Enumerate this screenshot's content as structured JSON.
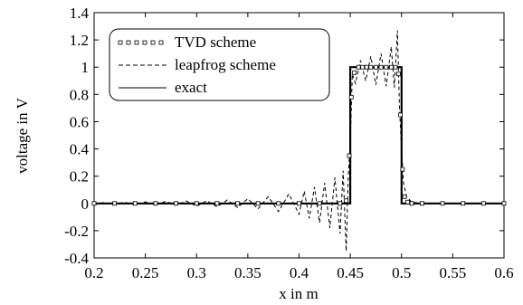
{
  "chart_data": {
    "type": "line",
    "xlabel": "x in m",
    "ylabel": "voltage in V",
    "xlim": [
      0.2,
      0.6
    ],
    "ylim": [
      -0.4,
      1.4
    ],
    "x_ticks": [
      "0.2",
      "0.25",
      "0.3",
      "0.35",
      "0.4",
      "0.45",
      "0.5",
      "0.55",
      "0.6"
    ],
    "y_ticks": [
      "-0.4",
      "-0.2",
      "0",
      "0.2",
      "0.4",
      "0.6",
      "0.8",
      "1",
      "1.2",
      "1.4"
    ],
    "grid": false,
    "legend_position": "top-left",
    "series": [
      {
        "name": "TVD scheme",
        "style": "square-markers",
        "x": [
          0.2,
          0.22,
          0.24,
          0.26,
          0.28,
          0.3,
          0.32,
          0.34,
          0.36,
          0.38,
          0.4,
          0.42,
          0.44,
          0.446,
          0.449,
          0.451,
          0.454,
          0.458,
          0.462,
          0.466,
          0.47,
          0.475,
          0.48,
          0.485,
          0.49,
          0.494,
          0.497,
          0.499,
          0.501,
          0.503,
          0.506,
          0.51,
          0.52,
          0.54,
          0.56,
          0.58,
          0.6
        ],
        "y": [
          0,
          0,
          0,
          0,
          0,
          0,
          0,
          0,
          0,
          0,
          0,
          0,
          0,
          0.02,
          0.35,
          0.78,
          0.96,
          1.0,
          1.0,
          1.0,
          1.0,
          1.0,
          1.0,
          1.0,
          1.0,
          1.0,
          0.95,
          0.65,
          0.25,
          0.05,
          0.01,
          0,
          0,
          0,
          0,
          0,
          0
        ]
      },
      {
        "name": "leapfrog scheme",
        "style": "dashed",
        "x": [
          0.2,
          0.21,
          0.22,
          0.23,
          0.24,
          0.25,
          0.26,
          0.27,
          0.28,
          0.29,
          0.3,
          0.31,
          0.32,
          0.33,
          0.34,
          0.35,
          0.36,
          0.37,
          0.38,
          0.39,
          0.4,
          0.405,
          0.41,
          0.415,
          0.42,
          0.425,
          0.43,
          0.435,
          0.44,
          0.443,
          0.446,
          0.448,
          0.45,
          0.452,
          0.455,
          0.46,
          0.465,
          0.47,
          0.475,
          0.48,
          0.485,
          0.49,
          0.493,
          0.496,
          0.498,
          0.5,
          0.502,
          0.505,
          0.51,
          0.52,
          0.54,
          0.56,
          0.58,
          0.6
        ],
        "y": [
          0,
          0.005,
          -0.005,
          0.008,
          -0.01,
          0.012,
          -0.01,
          0.015,
          -0.012,
          0.018,
          -0.02,
          0.02,
          -0.025,
          0.025,
          -0.03,
          0.035,
          -0.04,
          0.05,
          -0.06,
          0.07,
          -0.08,
          0.09,
          -0.11,
          0.12,
          -0.14,
          0.15,
          -0.18,
          0.19,
          -0.22,
          0.24,
          -0.35,
          0.2,
          0.45,
          0.95,
          0.88,
          1.05,
          0.9,
          1.08,
          0.87,
          1.1,
          0.86,
          1.15,
          0.85,
          1.27,
          0.7,
          0.4,
          0.15,
          0.05,
          0.01,
          0,
          0,
          0,
          0,
          0
        ]
      },
      {
        "name": "exact",
        "style": "solid",
        "x": [
          0.2,
          0.45,
          0.45,
          0.5,
          0.5,
          0.6
        ],
        "y": [
          0,
          0,
          1,
          1,
          0,
          0
        ]
      }
    ]
  }
}
